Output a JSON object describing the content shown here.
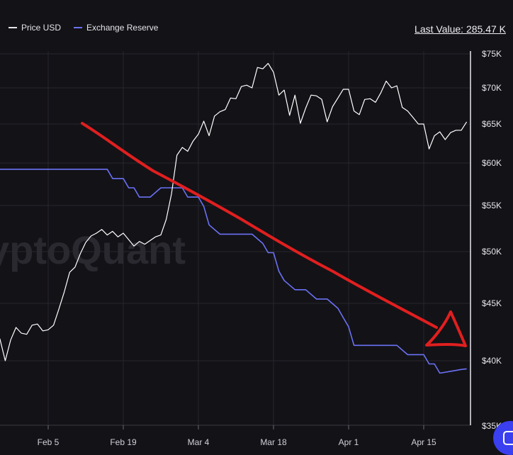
{
  "legend": {
    "price_label": "Price USD",
    "reserve_label": "Exchange Reserve"
  },
  "last_value": "Last Value: 285.47 K",
  "watermark": "yptoQuant",
  "colors": {
    "background": "#131217",
    "price_line": "#ffffff",
    "reserve_line": "#6b72f5",
    "annotation": "#e01f1f",
    "grid": "#26262d"
  },
  "chart_data": {
    "type": "line",
    "x_ticks": [
      "Feb 5",
      "Feb 19",
      "Mar 4",
      "Mar 18",
      "Apr 1",
      "Apr 15"
    ],
    "y_ticks": [
      "$75K",
      "$70K",
      "$65K",
      "$60K",
      "$55K",
      "$50K",
      "$45K",
      "$40K",
      "$35K"
    ],
    "y_axis": "right",
    "ylim": [
      35000,
      75000
    ],
    "grid": true,
    "legend_position": "top-left",
    "series": [
      {
        "name": "Price USD",
        "x": [
          "Jan 25",
          "Jan 26",
          "Jan 27",
          "Jan 28",
          "Jan 29",
          "Jan 30",
          "Jan 31",
          "Feb 1",
          "Feb 2",
          "Feb 3",
          "Feb 4",
          "Feb 5",
          "Feb 6",
          "Feb 7",
          "Feb 8",
          "Feb 9",
          "Feb 10",
          "Feb 11",
          "Feb 12",
          "Feb 13",
          "Feb 14",
          "Feb 15",
          "Feb 16",
          "Feb 17",
          "Feb 18",
          "Feb 19",
          "Feb 20",
          "Feb 21",
          "Feb 22",
          "Feb 23",
          "Feb 24",
          "Feb 25",
          "Feb 26",
          "Feb 27",
          "Feb 28",
          "Feb 29",
          "Mar 1",
          "Mar 2",
          "Mar 3",
          "Mar 4",
          "Mar 5",
          "Mar 6",
          "Mar 7",
          "Mar 8",
          "Mar 9",
          "Mar 10",
          "Mar 11",
          "Mar 12",
          "Mar 13",
          "Mar 14",
          "Mar 15",
          "Mar 16",
          "Mar 17",
          "Mar 18",
          "Mar 19",
          "Mar 20",
          "Mar 21",
          "Mar 22",
          "Mar 23",
          "Mar 24",
          "Mar 25",
          "Mar 26",
          "Mar 27",
          "Mar 28",
          "Mar 29",
          "Mar 30",
          "Mar 31",
          "Apr 1",
          "Apr 2",
          "Apr 3",
          "Apr 4",
          "Apr 5",
          "Apr 6",
          "Apr 7",
          "Apr 8",
          "Apr 9",
          "Apr 10",
          "Apr 11",
          "Apr 12",
          "Apr 13",
          "Apr 14",
          "Apr 15",
          "Apr 16",
          "Apr 17",
          "Apr 18",
          "Apr 19",
          "Apr 20",
          "Apr 21",
          "Apr 22",
          "Apr 23"
        ],
        "values": [
          40100,
          40200,
          41900,
          40000,
          41800,
          42900,
          42400,
          42300,
          43100,
          43200,
          42600,
          42700,
          43100,
          44500,
          46100,
          48000,
          48500,
          49800,
          51000,
          51700,
          52000,
          52400,
          51800,
          52200,
          51600,
          52000,
          51300,
          50600,
          51100,
          50800,
          51200,
          51600,
          51800,
          53500,
          56400,
          61000,
          62000,
          61500,
          62800,
          63700,
          65400,
          63500,
          66100,
          66700,
          67000,
          68600,
          68500,
          70200,
          70400,
          70000,
          73000,
          72800,
          73600,
          72300,
          69000,
          69700,
          66200,
          69000,
          65100,
          67200,
          69000,
          68900,
          68400,
          65300,
          67400,
          68600,
          69800,
          69800,
          66800,
          66300,
          68400,
          68500,
          68000,
          69300,
          71000,
          70000,
          70300,
          67300,
          66800,
          65900,
          65000,
          65000,
          61800,
          63500,
          64000,
          63000,
          63900,
          64200,
          64200,
          65300
        ],
        "color": "#ffffff"
      },
      {
        "name": "Exchange Reserve",
        "x": [
          "Jan 25",
          "Jan 27",
          "Jan 29",
          "Jan 31",
          "Feb 2",
          "Feb 4",
          "Feb 6",
          "Feb 8",
          "Feb 10",
          "Feb 12",
          "Feb 14",
          "Feb 16",
          "Feb 17",
          "Feb 18",
          "Feb 19",
          "Feb 20",
          "Feb 21",
          "Feb 22",
          "Feb 24",
          "Feb 26",
          "Feb 27",
          "Feb 28",
          "Mar 1",
          "Mar 2",
          "Mar 4",
          "Mar 5",
          "Mar 6",
          "Mar 8",
          "Mar 10",
          "Mar 12",
          "Mar 14",
          "Mar 16",
          "Mar 17",
          "Mar 18",
          "Mar 19",
          "Mar 20",
          "Mar 22",
          "Mar 24",
          "Mar 26",
          "Mar 28",
          "Mar 30",
          "Mar 31",
          "Apr 1",
          "Apr 2",
          "Apr 4",
          "Apr 6",
          "Apr 8",
          "Apr 10",
          "Apr 12",
          "Apr 14",
          "Apr 15",
          "Apr 16",
          "Apr 17",
          "Apr 18",
          "Apr 20",
          "Apr 22",
          "Apr 23"
        ],
        "values": [
          307,
          307,
          307,
          307,
          307,
          307,
          307,
          307,
          307,
          307,
          307,
          307,
          306,
          306,
          306,
          305,
          305,
          304,
          304,
          305,
          305,
          305,
          305,
          304,
          304,
          303,
          301,
          300,
          300,
          300,
          300,
          299,
          298,
          298,
          296,
          295,
          294,
          294,
          293,
          293,
          292,
          291,
          290,
          288,
          288,
          288,
          288,
          288,
          287,
          287,
          287,
          286,
          286,
          285,
          285.2,
          285.4,
          285.47
        ]
      }
    ],
    "annotation": "hand-drawn red downward arrow"
  }
}
